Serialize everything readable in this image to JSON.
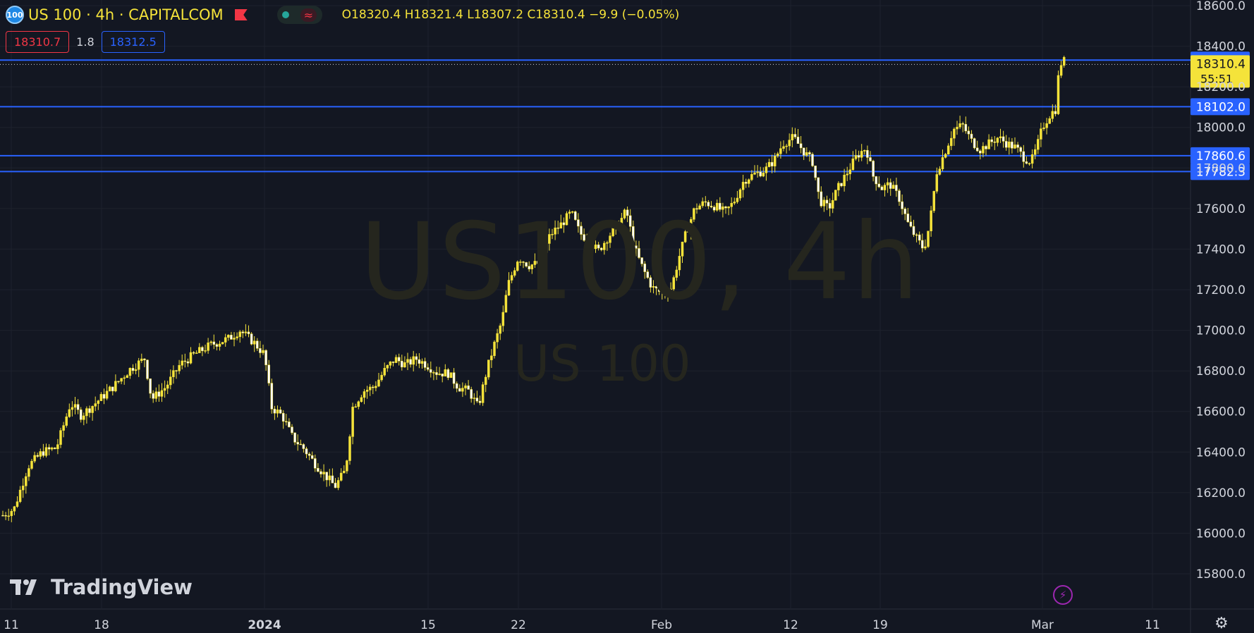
{
  "header": {
    "symbol_badge": "100",
    "title": "US 100 · 4h · CAPITALCOM",
    "ohlc": {
      "o_label": "O",
      "o": "18320.4",
      "h_label": "H",
      "h": "18321.4",
      "l_label": "L",
      "l": "18307.2",
      "c_label": "C",
      "c": "18310.4",
      "change": "−9.9 (−0.05%)"
    },
    "bid": "18310.7",
    "spread": "1.8",
    "ask": "18312.5"
  },
  "watermark": {
    "symbol": "US100, 4h",
    "description": "US 100"
  },
  "brand": "TradingView",
  "colors": {
    "background": "#131722",
    "candle": "#f5e33a",
    "hline": "#2962ff",
    "text": "#d1d4dc",
    "bid": "#f23645",
    "ask": "#2962ff"
  },
  "chart_data": {
    "type": "candlestick",
    "y_axis_ticks": [
      15800,
      16000,
      16200,
      16400,
      16600,
      16800,
      17000,
      17200,
      17400,
      17600,
      17800,
      18000,
      18200,
      18400,
      18600
    ],
    "y_tick_labels": [
      "15800.0",
      "16000.0",
      "16200.0",
      "16400.0",
      "16600.0",
      "16800.0",
      "17000.0",
      "17200.0",
      "17400.0",
      "17600.0",
      "17800.0",
      "18000.0",
      "18200.0",
      "18400.0",
      "18600.0"
    ],
    "ylim": [
      15620,
      18640
    ],
    "x_tick_labels": [
      "11",
      "18",
      "2024",
      "15",
      "22",
      "Feb",
      "12",
      "19",
      "Mar",
      "11"
    ],
    "grid": true,
    "horizontal_lines": [
      {
        "value": 18331.6,
        "label": "18331.6"
      },
      {
        "value": 18102.0,
        "label": "18102.0"
      },
      {
        "value": 17860.6,
        "label": "17860.6"
      },
      {
        "value": 17782.3,
        "label": "17782.3"
      }
    ],
    "last_price": {
      "value": 18310.4,
      "label": "18310.4",
      "countdown": "55:51"
    },
    "price_path": [
      [
        0,
        16080
      ],
      [
        20,
        16120
      ],
      [
        40,
        16330
      ],
      [
        60,
        16400
      ],
      [
        80,
        16420
      ],
      [
        100,
        16640
      ],
      [
        115,
        16580
      ],
      [
        135,
        16640
      ],
      [
        160,
        16720
      ],
      [
        185,
        16810
      ],
      [
        205,
        16860
      ],
      [
        215,
        16660
      ],
      [
        235,
        16720
      ],
      [
        255,
        16830
      ],
      [
        275,
        16880
      ],
      [
        300,
        16930
      ],
      [
        325,
        16960
      ],
      [
        340,
        17000
      ],
      [
        360,
        16940
      ],
      [
        375,
        16880
      ],
      [
        385,
        16620
      ],
      [
        400,
        16580
      ],
      [
        415,
        16470
      ],
      [
        430,
        16420
      ],
      [
        445,
        16350
      ],
      [
        460,
        16290
      ],
      [
        475,
        16230
      ],
      [
        490,
        16310
      ],
      [
        500,
        16620
      ],
      [
        515,
        16700
      ],
      [
        530,
        16720
      ],
      [
        545,
        16800
      ],
      [
        560,
        16860
      ],
      [
        575,
        16830
      ],
      [
        590,
        16860
      ],
      [
        605,
        16830
      ],
      [
        620,
        16790
      ],
      [
        635,
        16790
      ],
      [
        650,
        16720
      ],
      [
        665,
        16700
      ],
      [
        678,
        16620
      ],
      [
        690,
        16800
      ],
      [
        700,
        16920
      ],
      [
        712,
        17050
      ],
      [
        720,
        17220
      ],
      [
        735,
        17360
      ],
      [
        750,
        17320
      ],
      [
        765,
        17330
      ],
      [
        780,
        17470
      ],
      [
        795,
        17520
      ],
      [
        810,
        17580
      ],
      [
        822,
        17480
      ],
      [
        835,
        17440
      ],
      [
        848,
        17390
      ],
      [
        862,
        17460
      ],
      [
        875,
        17510
      ],
      [
        888,
        17590
      ],
      [
        900,
        17400
      ],
      [
        912,
        17300
      ],
      [
        925,
        17210
      ],
      [
        940,
        17180
      ],
      [
        952,
        17210
      ],
      [
        962,
        17350
      ],
      [
        972,
        17470
      ],
      [
        985,
        17600
      ],
      [
        1000,
        17630
      ],
      [
        1015,
        17610
      ],
      [
        1028,
        17580
      ],
      [
        1040,
        17630
      ],
      [
        1055,
        17740
      ],
      [
        1070,
        17770
      ],
      [
        1085,
        17790
      ],
      [
        1098,
        17840
      ],
      [
        1110,
        17920
      ],
      [
        1125,
        17950
      ],
      [
        1140,
        17880
      ],
      [
        1152,
        17830
      ],
      [
        1162,
        17640
      ],
      [
        1175,
        17600
      ],
      [
        1188,
        17700
      ],
      [
        1200,
        17770
      ],
      [
        1215,
        17860
      ],
      [
        1228,
        17900
      ],
      [
        1238,
        17760
      ],
      [
        1250,
        17700
      ],
      [
        1262,
        17720
      ],
      [
        1275,
        17650
      ],
      [
        1288,
        17520
      ],
      [
        1300,
        17450
      ],
      [
        1310,
        17400
      ],
      [
        1318,
        17520
      ],
      [
        1328,
        17780
      ],
      [
        1340,
        17880
      ],
      [
        1352,
        17990
      ],
      [
        1365,
        18010
      ],
      [
        1378,
        17930
      ],
      [
        1390,
        17890
      ],
      [
        1402,
        17920
      ],
      [
        1415,
        17950
      ],
      [
        1428,
        17920
      ],
      [
        1440,
        17900
      ],
      [
        1452,
        17850
      ],
      [
        1462,
        17830
      ],
      [
        1470,
        17900
      ],
      [
        1478,
        18000
      ],
      [
        1488,
        18060
      ],
      [
        1497,
        18090
      ],
      [
        1502,
        18310
      ],
      [
        1510,
        18330
      ],
      [
        1512,
        18310
      ]
    ]
  }
}
